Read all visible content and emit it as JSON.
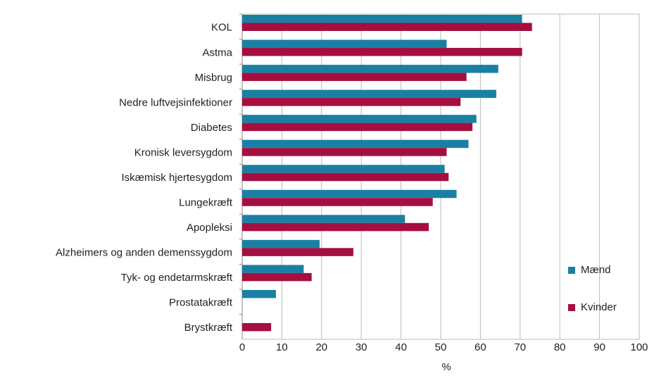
{
  "chart_data": {
    "type": "barh",
    "categories": [
      "KOL",
      "Astma",
      "Misbrug",
      "Nedre luftvejsinfektioner",
      "Diabetes",
      "Kronisk leversygdom",
      "Iskæmisk hjertesygdom",
      "Lungekræft",
      "Apopleksi",
      "Alzheimers og anden demenssygdom",
      "Tyk- og endetarmskræft",
      "Prostatakræft",
      "Brystkræft"
    ],
    "series": [
      {
        "name": "Mænd",
        "color": "#1a80a3",
        "values": [
          70.5,
          51.5,
          64.5,
          64,
          59,
          57,
          51,
          54,
          41,
          19.5,
          15.5,
          8.5,
          null
        ]
      },
      {
        "name": "Kvinder",
        "color": "#a50f40",
        "values": [
          73,
          70.5,
          56.5,
          55,
          58,
          51.5,
          52,
          48,
          47,
          28,
          17.5,
          null,
          7.3
        ]
      }
    ],
    "xlabel": "%",
    "xlim": [
      0,
      100
    ],
    "xticks": [
      0,
      10,
      20,
      30,
      40,
      50,
      60,
      70,
      80,
      90,
      100
    ],
    "grid": true,
    "legend": "lower right"
  }
}
